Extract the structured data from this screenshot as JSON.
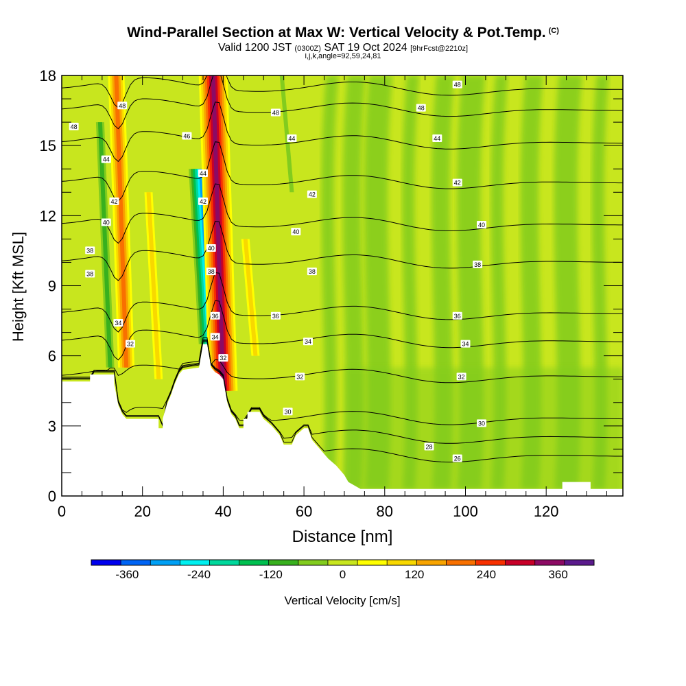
{
  "title": {
    "main": "Wind-Parallel Section at Max W: Vertical Velocity & Pot.Temp.",
    "copyright": "(C)",
    "valid_prefix": "Valid 1200 JST",
    "valid_utc": "(0300Z)",
    "valid_date": "SAT 19 Oct 2024",
    "forecast": "[9hrFcst@2210z]",
    "ijk": "i,j,k,angle=92,59,24,81"
  },
  "chart_data": {
    "type": "heatmap",
    "xlabel": "Distance [nm]",
    "ylabel": "Height [Kft MSL]",
    "xlim": [
      0,
      139
    ],
    "ylim": [
      0,
      18
    ],
    "xticks": [
      0,
      20,
      40,
      60,
      80,
      100,
      120
    ],
    "yticks": [
      0,
      3,
      6,
      9,
      12,
      15,
      18
    ],
    "colorbar": {
      "label": "Vertical Velocity [cm/s]",
      "ticks": [
        -360,
        -240,
        -120,
        0,
        120,
        240,
        360
      ],
      "bin_edges": [
        -420,
        -360,
        -300,
        -240,
        -180,
        -120,
        -60,
        -30,
        30,
        60,
        120,
        180,
        240,
        300,
        360,
        420
      ],
      "colors": [
        "#0000ee",
        "#0064f5",
        "#00a0f5",
        "#00f0f0",
        "#00d89c",
        "#00c050",
        "#38b01e",
        "#82cc1e",
        "#c8e61e",
        "#ffff00",
        "#f8d800",
        "#f8a400",
        "#f87000",
        "#f83000",
        "#c80028",
        "#8c0a64",
        "#5a1a8c"
      ]
    },
    "vertical_velocity_features": [
      {
        "x": 16,
        "y": [
          5.5,
          18
        ],
        "w_cm_s": 200,
        "kind": "updraft"
      },
      {
        "x": 12,
        "y": [
          5.5,
          16
        ],
        "w_cm_s": -110,
        "kind": "downdraft"
      },
      {
        "x": 37,
        "y": [
          6.5,
          14
        ],
        "w_cm_s": -330,
        "kind": "downdraft"
      },
      {
        "x": 40,
        "y": [
          4.5,
          18
        ],
        "w_cm_s": 380,
        "kind": "updraft"
      },
      {
        "x": 24,
        "y": [
          5,
          13
        ],
        "w_cm_s": 100,
        "kind": "updraft"
      },
      {
        "x": 48,
        "y": [
          6,
          11
        ],
        "w_cm_s": 80,
        "kind": "updraft"
      },
      {
        "x": 57,
        "y": [
          13,
          18
        ],
        "w_cm_s": -70,
        "kind": "downdraft"
      },
      {
        "x": 80,
        "y": [
          0.5,
          15
        ],
        "w_cm_s": 0,
        "kind": "weak"
      }
    ],
    "terrain_kft": [
      [
        0,
        4.9
      ],
      [
        7,
        4.9
      ],
      [
        7,
        5.2
      ],
      [
        13,
        5.2
      ],
      [
        13,
        4.8
      ],
      [
        14,
        3.9
      ],
      [
        15,
        3.5
      ],
      [
        16,
        3.3
      ],
      [
        24,
        3.3
      ],
      [
        24,
        2.9
      ],
      [
        25,
        2.9
      ],
      [
        25,
        3.3
      ],
      [
        26,
        3.9
      ],
      [
        27,
        4.3
      ],
      [
        28,
        4.8
      ],
      [
        29,
        5.2
      ],
      [
        30,
        5.4
      ],
      [
        34,
        5.5
      ],
      [
        35,
        6.5
      ],
      [
        36,
        6.5
      ],
      [
        37,
        5.5
      ],
      [
        38,
        5.3
      ],
      [
        39,
        5.2
      ],
      [
        40,
        5.0
      ],
      [
        41,
        4.0
      ],
      [
        42,
        3.5
      ],
      [
        43,
        3.3
      ],
      [
        44,
        2.9
      ],
      [
        45,
        2.9
      ],
      [
        45,
        3.3
      ],
      [
        46,
        3.3
      ],
      [
        46,
        3.6
      ],
      [
        49,
        3.6
      ],
      [
        50,
        3.3
      ],
      [
        52,
        3.0
      ],
      [
        54,
        2.6
      ],
      [
        55,
        2.2
      ],
      [
        57,
        2.2
      ],
      [
        58,
        2.6
      ],
      [
        60,
        2.9
      ],
      [
        61,
        2.9
      ],
      [
        62,
        2.4
      ],
      [
        63,
        2.2
      ],
      [
        64,
        2.0
      ],
      [
        66,
        1.6
      ],
      [
        68,
        1.3
      ],
      [
        70,
        0.9
      ],
      [
        71,
        0.6
      ],
      [
        73,
        0.4
      ],
      [
        74,
        0.3
      ],
      [
        124,
        0.3
      ],
      [
        124,
        0.6
      ],
      [
        131,
        0.6
      ],
      [
        131,
        0.3
      ],
      [
        139,
        0.3
      ]
    ],
    "theta_contours": [
      {
        "label": "26",
        "y_far": 1.7
      },
      {
        "label": "28",
        "y_far": 2.5
      },
      {
        "label": "30",
        "y_far": 3.3
      },
      {
        "label": "32",
        "y_far": 5.1
      },
      {
        "label": "34",
        "y_far": 6.6
      },
      {
        "label": "36",
        "y_far": 7.8
      },
      {
        "label": "38",
        "y_far": 10.0
      },
      {
        "label": "40",
        "y_far": 11.6
      },
      {
        "label": "42",
        "y_far": 13.4
      },
      {
        "label": "44",
        "y_far": 15.1
      },
      {
        "label": "46",
        "y_far": 16.5
      },
      {
        "label": "48",
        "y_far": 17.4
      }
    ],
    "contour_label_positions": [
      {
        "text": "48",
        "x": 98,
        "y": 17.6
      },
      {
        "text": "48",
        "x": 89,
        "y": 16.6
      },
      {
        "text": "48",
        "x": 53,
        "y": 16.4
      },
      {
        "text": "48",
        "x": 15,
        "y": 16.7
      },
      {
        "text": "48",
        "x": 3,
        "y": 15.8
      },
      {
        "text": "46",
        "x": 31,
        "y": 15.4
      },
      {
        "text": "44",
        "x": 93,
        "y": 15.3
      },
      {
        "text": "44",
        "x": 57,
        "y": 15.3
      },
      {
        "text": "44",
        "x": 11,
        "y": 14.4
      },
      {
        "text": "44",
        "x": 35,
        "y": 13.8
      },
      {
        "text": "42",
        "x": 98,
        "y": 13.4
      },
      {
        "text": "42",
        "x": 62,
        "y": 12.9
      },
      {
        "text": "42",
        "x": 13,
        "y": 12.6
      },
      {
        "text": "42",
        "x": 35,
        "y": 12.6
      },
      {
        "text": "40",
        "x": 104,
        "y": 11.6
      },
      {
        "text": "40",
        "x": 58,
        "y": 11.3
      },
      {
        "text": "40",
        "x": 11,
        "y": 11.7
      },
      {
        "text": "40",
        "x": 37,
        "y": 10.6
      },
      {
        "text": "38",
        "x": 103,
        "y": 9.9
      },
      {
        "text": "38",
        "x": 62,
        "y": 9.6
      },
      {
        "text": "38",
        "x": 7,
        "y": 10.5
      },
      {
        "text": "38",
        "x": 7,
        "y": 9.5
      },
      {
        "text": "38",
        "x": 37,
        "y": 9.6
      },
      {
        "text": "36",
        "x": 98,
        "y": 7.7
      },
      {
        "text": "36",
        "x": 53,
        "y": 7.7
      },
      {
        "text": "36",
        "x": 38,
        "y": 7.7
      },
      {
        "text": "34",
        "x": 100,
        "y": 6.5
      },
      {
        "text": "34",
        "x": 61,
        "y": 6.6
      },
      {
        "text": "34",
        "x": 14,
        "y": 7.4
      },
      {
        "text": "34",
        "x": 38,
        "y": 6.8
      },
      {
        "text": "32",
        "x": 99,
        "y": 5.1
      },
      {
        "text": "32",
        "x": 59,
        "y": 5.1
      },
      {
        "text": "32",
        "x": 17,
        "y": 6.5
      },
      {
        "text": "32",
        "x": 40,
        "y": 5.9
      },
      {
        "text": "30",
        "x": 104,
        "y": 3.1
      },
      {
        "text": "30",
        "x": 56,
        "y": 3.6
      },
      {
        "text": "28",
        "x": 91,
        "y": 2.1
      },
      {
        "text": "26",
        "x": 98,
        "y": 1.6
      }
    ]
  }
}
